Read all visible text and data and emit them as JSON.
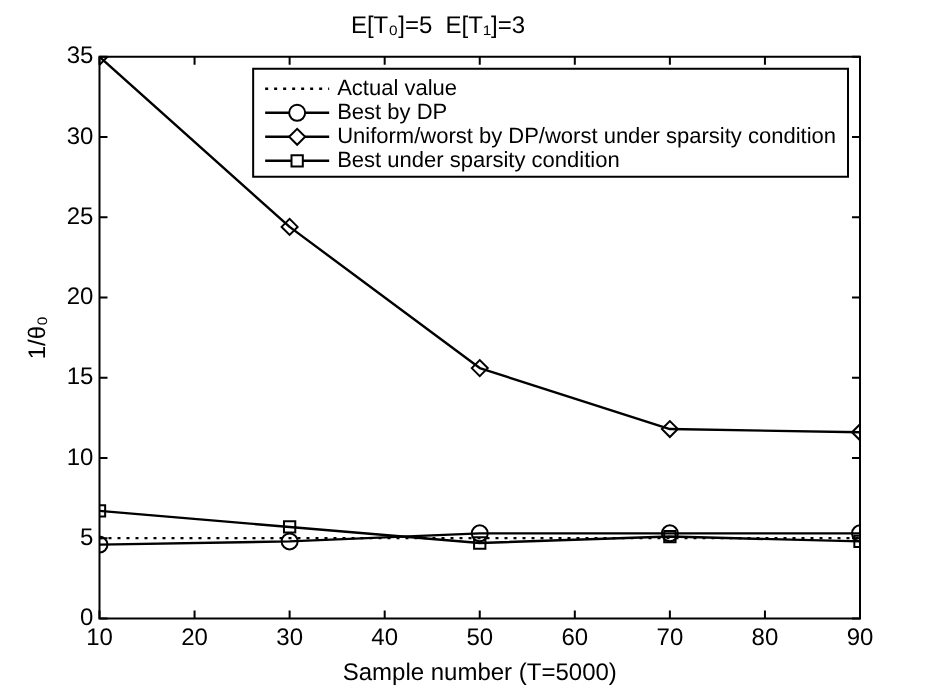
{
  "chart_data": {
    "type": "line",
    "title": "E[T₀]=5  E[T₁]=3",
    "xlabel": "Sample number (T=5000)",
    "ylabel": "1/θ₀",
    "x": [
      10,
      30,
      50,
      70,
      90
    ],
    "series": [
      {
        "name": "Actual value",
        "color": "#000000",
        "values": [
          5,
          5,
          5,
          5,
          5
        ],
        "marker": "none",
        "line_style": "dotted"
      },
      {
        "name": "Best by DP",
        "color": "#000000",
        "values": [
          4.6,
          4.8,
          5.3,
          5.3,
          5.3
        ],
        "marker": "circle",
        "line_style": "solid"
      },
      {
        "name": "Uniform/worst by DP/worst under sparsity condition",
        "color": "#000000",
        "values": [
          35,
          24.4,
          15.6,
          11.8,
          11.6
        ],
        "marker": "diamond",
        "line_style": "solid"
      },
      {
        "name": "Best under sparsity condition",
        "color": "#000000",
        "values": [
          6.7,
          5.7,
          4.7,
          5.1,
          4.8
        ],
        "marker": "square",
        "line_style": "solid"
      }
    ],
    "xlim": [
      10,
      90
    ],
    "xticks": [
      10,
      20,
      30,
      40,
      50,
      60,
      70,
      80,
      90
    ],
    "ylim": [
      0,
      35
    ],
    "yticks": [
      0,
      5,
      10,
      15,
      20,
      25,
      30,
      35
    ],
    "grid": false,
    "legend": "top right"
  }
}
